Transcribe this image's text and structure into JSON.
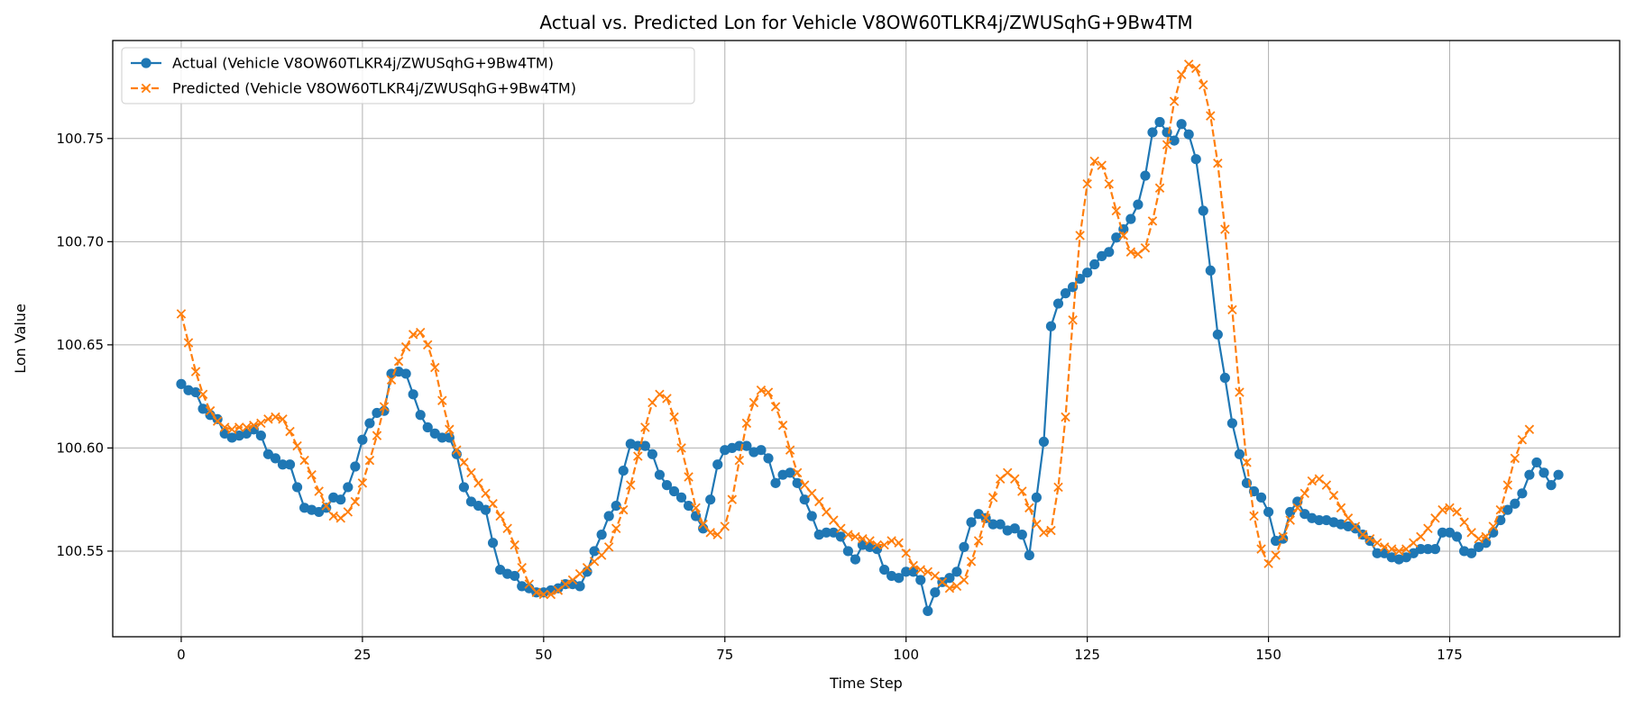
{
  "chart_data": {
    "type": "line",
    "title": "Actual vs. Predicted Lon for Vehicle V8OW60TLKR4j/ZWUSqhG+9Bw4TM",
    "xlabel": "Time Step",
    "ylabel": "Lon Value",
    "xlim": [
      -9.45,
      198.45
    ],
    "ylim": [
      100.5085,
      100.7975
    ],
    "xticks": [
      0,
      25,
      50,
      75,
      100,
      125,
      150,
      175
    ],
    "xtick_labels": [
      "0",
      "25",
      "50",
      "75",
      "100",
      "125",
      "150",
      "175"
    ],
    "yticks": [
      100.55,
      100.6,
      100.65,
      100.7,
      100.75
    ],
    "ytick_labels": [
      "100.55",
      "100.60",
      "100.65",
      "100.70",
      "100.75"
    ],
    "grid": true,
    "legend_position": "top-left",
    "series": [
      {
        "name": "Actual (Vehicle V8OW60TLKR4j/ZWUSqhG+9Bw4TM)",
        "color": "#1f77b4",
        "marker": "circle",
        "linestyle": "solid",
        "values": [
          100.631,
          100.628,
          100.627,
          100.619,
          100.616,
          100.614,
          100.607,
          100.605,
          100.606,
          100.607,
          100.609,
          100.606,
          100.597,
          100.595,
          100.592,
          100.592,
          100.581,
          100.571,
          100.57,
          100.569,
          100.571,
          100.576,
          100.575,
          100.581,
          100.591,
          100.604,
          100.612,
          100.617,
          100.618,
          100.636,
          100.637,
          100.636,
          100.626,
          100.616,
          100.61,
          100.607,
          100.605,
          100.605,
          100.597,
          100.581,
          100.574,
          100.572,
          100.57,
          100.554,
          100.541,
          100.539,
          100.538,
          100.533,
          100.532,
          100.53,
          100.53,
          100.531,
          100.532,
          100.534,
          100.534,
          100.533,
          100.54,
          100.55,
          100.558,
          100.567,
          100.572,
          100.589,
          100.602,
          100.601,
          100.601,
          100.597,
          100.587,
          100.582,
          100.579,
          100.576,
          100.572,
          100.567,
          100.561,
          100.575,
          100.592,
          100.599,
          100.6,
          100.601,
          100.601,
          100.598,
          100.599,
          100.595,
          100.583,
          100.587,
          100.588,
          100.583,
          100.575,
          100.567,
          100.558,
          100.559,
          100.559,
          100.557,
          100.55,
          100.546,
          100.553,
          100.552,
          100.551,
          100.541,
          100.538,
          100.537,
          100.54,
          100.54,
          100.536,
          100.521,
          100.53,
          100.535,
          100.537,
          100.54,
          100.552,
          100.564,
          100.568,
          100.566,
          100.563,
          100.563,
          100.56,
          100.561,
          100.558,
          100.548,
          100.576,
          100.603,
          100.659,
          100.67,
          100.675,
          100.678,
          100.682,
          100.685,
          100.689,
          100.693,
          100.695,
          100.702,
          100.706,
          100.711,
          100.718,
          100.732,
          100.753,
          100.758,
          100.753,
          100.749,
          100.757,
          100.752,
          100.74,
          100.715,
          100.686,
          100.655,
          100.634,
          100.612,
          100.597,
          100.583,
          100.579,
          100.576,
          100.569,
          100.555,
          100.556,
          100.569,
          100.574,
          100.568,
          100.566,
          100.565,
          100.565,
          100.564,
          100.563,
          100.562,
          100.561,
          100.558,
          100.555,
          100.549,
          100.549,
          100.547,
          100.546,
          100.547,
          100.549,
          100.551,
          100.551,
          100.551,
          100.559,
          100.559,
          100.557,
          100.55,
          100.549,
          100.552,
          100.554,
          100.559,
          100.565,
          100.57,
          100.573,
          100.578,
          100.587,
          100.593,
          100.588,
          100.582,
          100.587
        ]
      },
      {
        "name": "Predicted (Vehicle V8OW60TLKR4j/ZWUSqhG+9Bw4TM)",
        "color": "#ff7f0e",
        "marker": "x",
        "linestyle": "dashed",
        "values": [
          100.665,
          100.651,
          100.637,
          100.626,
          100.618,
          100.613,
          100.61,
          100.609,
          100.61,
          100.61,
          100.611,
          100.612,
          100.614,
          100.615,
          100.614,
          100.608,
          100.601,
          100.594,
          100.587,
          100.579,
          100.572,
          100.567,
          100.566,
          100.569,
          100.574,
          100.583,
          100.594,
          100.606,
          100.62,
          100.633,
          100.642,
          100.649,
          100.655,
          100.656,
          100.65,
          100.639,
          100.623,
          100.609,
          100.599,
          100.593,
          100.588,
          100.583,
          100.578,
          100.573,
          100.567,
          100.561,
          100.553,
          100.542,
          100.534,
          100.53,
          100.529,
          100.529,
          100.531,
          100.534,
          100.536,
          100.539,
          100.542,
          100.545,
          100.548,
          100.552,
          100.561,
          100.57,
          100.582,
          100.596,
          100.61,
          100.622,
          100.626,
          100.624,
          100.615,
          100.6,
          100.586,
          100.571,
          100.563,
          100.559,
          100.558,
          100.562,
          100.575,
          100.594,
          100.612,
          100.622,
          100.628,
          100.627,
          100.62,
          100.611,
          100.599,
          100.588,
          100.582,
          100.578,
          100.574,
          100.569,
          100.565,
          100.561,
          100.558,
          100.557,
          100.556,
          100.555,
          100.553,
          100.553,
          100.555,
          100.554,
          100.549,
          100.543,
          100.541,
          100.54,
          100.538,
          100.535,
          100.532,
          100.533,
          100.536,
          100.545,
          100.555,
          100.566,
          100.576,
          100.585,
          100.588,
          100.585,
          100.579,
          100.571,
          100.563,
          100.559,
          100.56,
          100.581,
          100.615,
          100.662,
          100.703,
          100.728,
          100.739,
          100.737,
          100.728,
          100.715,
          100.703,
          100.695,
          100.694,
          100.697,
          100.71,
          100.726,
          100.747,
          100.768,
          100.781,
          100.786,
          100.784,
          100.776,
          100.761,
          100.738,
          100.706,
          100.667,
          100.627,
          100.593,
          100.567,
          100.551,
          100.544,
          100.548,
          100.557,
          100.565,
          100.571,
          100.578,
          100.584,
          100.585,
          100.582,
          100.577,
          100.571,
          100.566,
          100.562,
          100.558,
          100.556,
          100.554,
          100.552,
          100.551,
          100.55,
          100.551,
          100.554,
          100.557,
          100.561,
          100.566,
          100.57,
          100.571,
          100.569,
          100.564,
          100.559,
          100.556,
          100.557,
          100.562,
          100.57,
          100.582,
          100.595,
          100.604,
          100.609
        ]
      }
    ]
  }
}
